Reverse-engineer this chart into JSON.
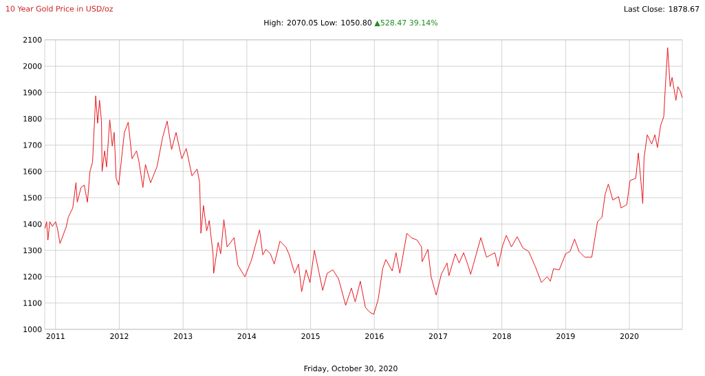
{
  "chart_data": {
    "type": "line",
    "title": "10 Year Gold Price in USD/oz",
    "subtitle": "High: 2070.05 Low: 1050.80",
    "xlabel": "Friday, October 30, 2020",
    "annotations": [
      "Last Close: 1878.67",
      "▲528.47 39.14%"
    ],
    "color": "#e8141b",
    "xlim": [
      2010.83,
      2020.83
    ],
    "ylim": [
      1000,
      2100
    ],
    "xticks": [
      2011,
      2012,
      2013,
      2014,
      2015,
      2016,
      2017,
      2018,
      2019,
      2020
    ],
    "yticks": [
      1000,
      1100,
      1200,
      1300,
      1400,
      1500,
      1600,
      1700,
      1800,
      1900,
      2000,
      2100
    ],
    "grid": true,
    "x": [
      2010.835,
      2010.86,
      2010.88,
      2010.91,
      2010.95,
      2011.0,
      2011.03,
      2011.07,
      2011.17,
      2011.2,
      2011.27,
      2011.32,
      2011.34,
      2011.4,
      2011.45,
      2011.5,
      2011.54,
      2011.58,
      2011.63,
      2011.66,
      2011.69,
      2011.72,
      2011.73,
      2011.77,
      2011.8,
      2011.85,
      2011.89,
      2011.92,
      2011.95,
      2011.99,
      2012.08,
      2012.14,
      2012.2,
      2012.27,
      2012.31,
      2012.37,
      2012.41,
      2012.49,
      2012.59,
      2012.68,
      2012.75,
      2012.82,
      2012.89,
      2012.98,
      2013.05,
      2013.14,
      2013.22,
      2013.26,
      2013.28,
      2013.32,
      2013.37,
      2013.41,
      2013.47,
      2013.48,
      2013.55,
      2013.59,
      2013.64,
      2013.69,
      2013.8,
      2013.86,
      2013.97,
      2014.07,
      2014.2,
      2014.25,
      2014.3,
      2014.37,
      2014.43,
      2014.52,
      2014.61,
      2014.66,
      2014.75,
      2014.81,
      2014.86,
      2014.93,
      2014.99,
      2015.06,
      2015.19,
      2015.26,
      2015.35,
      2015.44,
      2015.55,
      2015.64,
      2015.7,
      2015.78,
      2015.86,
      2015.93,
      2015.99,
      2016.06,
      2016.13,
      2016.18,
      2016.28,
      2016.34,
      2016.4,
      2016.51,
      2016.58,
      2016.67,
      2016.74,
      2016.75,
      2016.84,
      2016.89,
      2016.97,
      2017.05,
      2017.14,
      2017.17,
      2017.27,
      2017.33,
      2017.4,
      2017.47,
      2017.51,
      2017.67,
      2017.76,
      2017.89,
      2017.94,
      2018.01,
      2018.07,
      2018.15,
      2018.24,
      2018.33,
      2018.42,
      2018.53,
      2018.62,
      2018.71,
      2018.76,
      2018.81,
      2018.9,
      2019.0,
      2019.07,
      2019.14,
      2019.21,
      2019.3,
      2019.41,
      2019.46,
      2019.5,
      2019.57,
      2019.62,
      2019.67,
      2019.74,
      2019.83,
      2019.87,
      2019.96,
      2020.01,
      2020.1,
      2020.14,
      2020.18,
      2020.21,
      2020.23,
      2020.28,
      2020.35,
      2020.4,
      2020.44,
      2020.49,
      2020.54,
      2020.56,
      2020.6,
      2020.64,
      2020.67,
      2020.73,
      2020.76,
      2020.8,
      2020.83
    ],
    "values": [
      1383,
      1409,
      1339,
      1409,
      1391,
      1409,
      1383,
      1326,
      1391,
      1426,
      1461,
      1557,
      1483,
      1539,
      1548,
      1483,
      1600,
      1635,
      1887,
      1783,
      1870,
      1791,
      1600,
      1678,
      1617,
      1796,
      1696,
      1748,
      1574,
      1548,
      1748,
      1787,
      1648,
      1678,
      1635,
      1539,
      1626,
      1557,
      1617,
      1730,
      1791,
      1683,
      1748,
      1648,
      1687,
      1583,
      1609,
      1557,
      1365,
      1470,
      1374,
      1413,
      1287,
      1213,
      1330,
      1287,
      1417,
      1313,
      1348,
      1243,
      1200,
      1261,
      1378,
      1283,
      1304,
      1287,
      1248,
      1335,
      1313,
      1287,
      1213,
      1248,
      1143,
      1226,
      1178,
      1300,
      1148,
      1213,
      1226,
      1191,
      1091,
      1157,
      1104,
      1183,
      1083,
      1065,
      1057,
      1113,
      1230,
      1265,
      1222,
      1291,
      1213,
      1365,
      1348,
      1339,
      1313,
      1257,
      1304,
      1200,
      1130,
      1209,
      1252,
      1204,
      1287,
      1252,
      1291,
      1243,
      1209,
      1348,
      1274,
      1291,
      1239,
      1317,
      1357,
      1313,
      1352,
      1309,
      1296,
      1235,
      1178,
      1200,
      1183,
      1230,
      1226,
      1287,
      1296,
      1343,
      1296,
      1274,
      1274,
      1348,
      1409,
      1426,
      1513,
      1552,
      1491,
      1504,
      1461,
      1474,
      1565,
      1574,
      1670,
      1565,
      1478,
      1652,
      1739,
      1704,
      1739,
      1691,
      1774,
      1809,
      1904,
      2070,
      1922,
      1957,
      1870,
      1922,
      1904,
      1879
    ]
  }
}
